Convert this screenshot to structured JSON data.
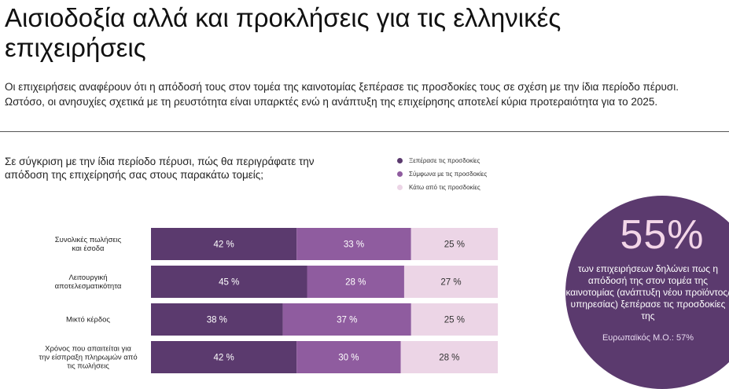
{
  "header": {
    "title": "Αισιοδοξία αλλά και προκλήσεις για τις ελληνικές επιχειρήσεις",
    "intro": "Οι επιχειρήσεις αναφέρουν ότι η απόδοσή τους στον τομέα της καινοτομίας ξεπέρασε τις προσδοκίες τους σε σχέση με την ίδια περίοδο πέρυσι. Ωστόσο, οι ανησυχίες σχετικά με τη ρευστότητα είναι υπαρκτές ενώ η ανάπτυξη της επιχείρησης αποτελεί κύρια προτεραιότητα για το 2025."
  },
  "chart_data": {
    "type": "bar",
    "orientation": "horizontal",
    "stacked": true,
    "title": "Σε σύγκριση με την ίδια περίοδο πέρυσι, πώς θα περιγράφατε την απόδοση της επιχείρησής σας στους παρακάτω τομείς;",
    "categories": [
      [
        "Συνολικές πωλήσεις",
        "και έσοδα"
      ],
      [
        "Λειτουργική",
        "αποτελεσματικότητα"
      ],
      [
        "Μικτό κέρδος"
      ],
      [
        "Χρόνος που απαιτείται για",
        "την είσπραξη πληρωμών από",
        "τις πωλήσεις"
      ]
    ],
    "series": [
      {
        "name": "Ξεπέρασε τις προσδοκίες",
        "values": [
          42,
          45,
          38,
          42
        ],
        "labels": [
          "42 %",
          "45 %",
          "38 %",
          "42 %"
        ],
        "color": "#5b3a6e"
      },
      {
        "name": "Σύμφωνα με τις προσδοκίες",
        "values": [
          33,
          28,
          37,
          30
        ],
        "labels": [
          "33 %",
          "28 %",
          "37 %",
          "30 %"
        ],
        "color": "#8f5c9f"
      },
      {
        "name": "Κάτω από τις προσδοκίες",
        "values": [
          25,
          27,
          25,
          28
        ],
        "labels": [
          "25 %",
          "27 %",
          "25 %",
          "28 %"
        ],
        "color": "#ecd5e6"
      }
    ],
    "legend": "top",
    "xlim": [
      0,
      100
    ]
  },
  "callout": {
    "value": "55%",
    "text": "των επιχειρήσεων δηλώνει πως η απόδοσή της στον τομέα της καινοτομίας (ανάπτυξη νέου προϊόντος/υπηρεσίας) ξεπέρασε τις προσδοκίες της",
    "eu_average": "Ευρωπαϊκός Μ.Ο.: 57%",
    "color": "#5b3a6e",
    "value_color": "#f3d6e8"
  }
}
